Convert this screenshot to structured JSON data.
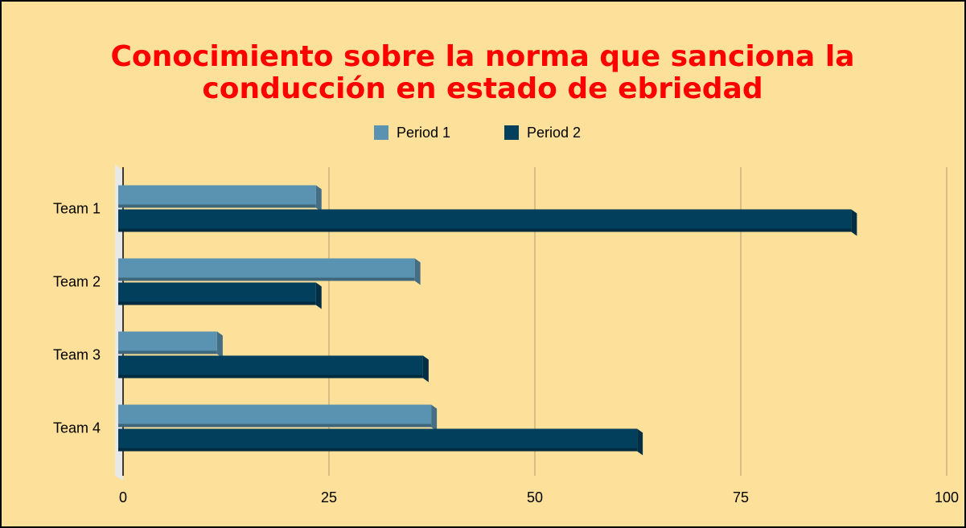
{
  "chart_data": {
    "type": "bar",
    "orientation": "horizontal",
    "title": [
      "Conocimiento sobre la norma que sanciona la",
      "conducción en estado de ebriedad"
    ],
    "categories": [
      "Team 1",
      "Team 2",
      "Team 3",
      "Team 4"
    ],
    "series": [
      {
        "name": "Period 1",
        "color": "#5a93b1",
        "values": [
          24,
          36,
          12,
          38
        ]
      },
      {
        "name": "Period 2",
        "color": "#023f5c",
        "values": [
          89,
          24,
          37,
          63
        ]
      }
    ],
    "xlim": [
      0,
      100
    ],
    "xticks": [
      0,
      25,
      50,
      75,
      100
    ],
    "grid": true,
    "legend": "top"
  }
}
